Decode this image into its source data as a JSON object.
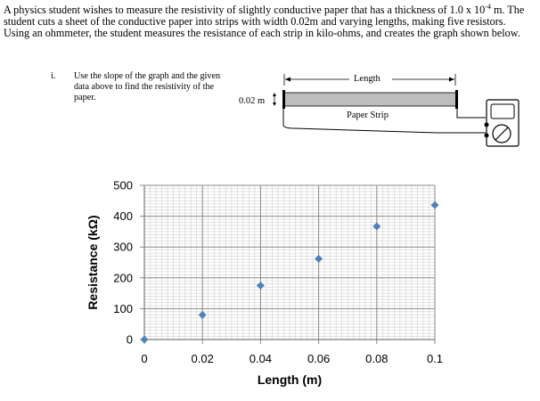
{
  "intro": {
    "line1_a": "A physics student wishes to measure the resistivity of slightly conductive paper that has a thickness of 1.0 x 10",
    "line1_exp": "-4",
    "line1_b": " m. The",
    "line2": "student cuts a sheet of the conductive paper into strips with width 0.02m and varying lengths, making five resistors.",
    "line3": "Using an ohmmeter, the student measures the resistance of each strip in kilo-ohms, and creates the graph shown below."
  },
  "question": {
    "number": "i.",
    "text": "Use the slope of the graph and the given data above to find the resistivity of the paper."
  },
  "figure": {
    "length_label": "Length",
    "width_label": "0.02 m",
    "strip_label": "Paper Strip"
  },
  "chart_data": {
    "type": "scatter",
    "xlabel": "Length (m)",
    "ylabel": "Resistance (kΩ)",
    "xlim": [
      0,
      0.1
    ],
    "ylim": [
      0,
      500
    ],
    "x_ticks": [
      "0",
      "0.02",
      "0.04",
      "0.06",
      "0.08",
      "0.1"
    ],
    "y_ticks": [
      "0",
      "100",
      "200",
      "300",
      "400",
      "500"
    ],
    "x_tick_values": [
      0,
      0.02,
      0.04,
      0.06,
      0.08,
      0.1
    ],
    "y_tick_values": [
      0,
      100,
      200,
      300,
      400,
      500
    ],
    "grid": true,
    "marker_color": "#4F81BD",
    "points": [
      {
        "x": 0,
        "y": 0
      },
      {
        "x": 0.02,
        "y": 80
      },
      {
        "x": 0.04,
        "y": 175
      },
      {
        "x": 0.06,
        "y": 262
      },
      {
        "x": 0.08,
        "y": 367
      },
      {
        "x": 0.1,
        "y": 436
      }
    ]
  }
}
